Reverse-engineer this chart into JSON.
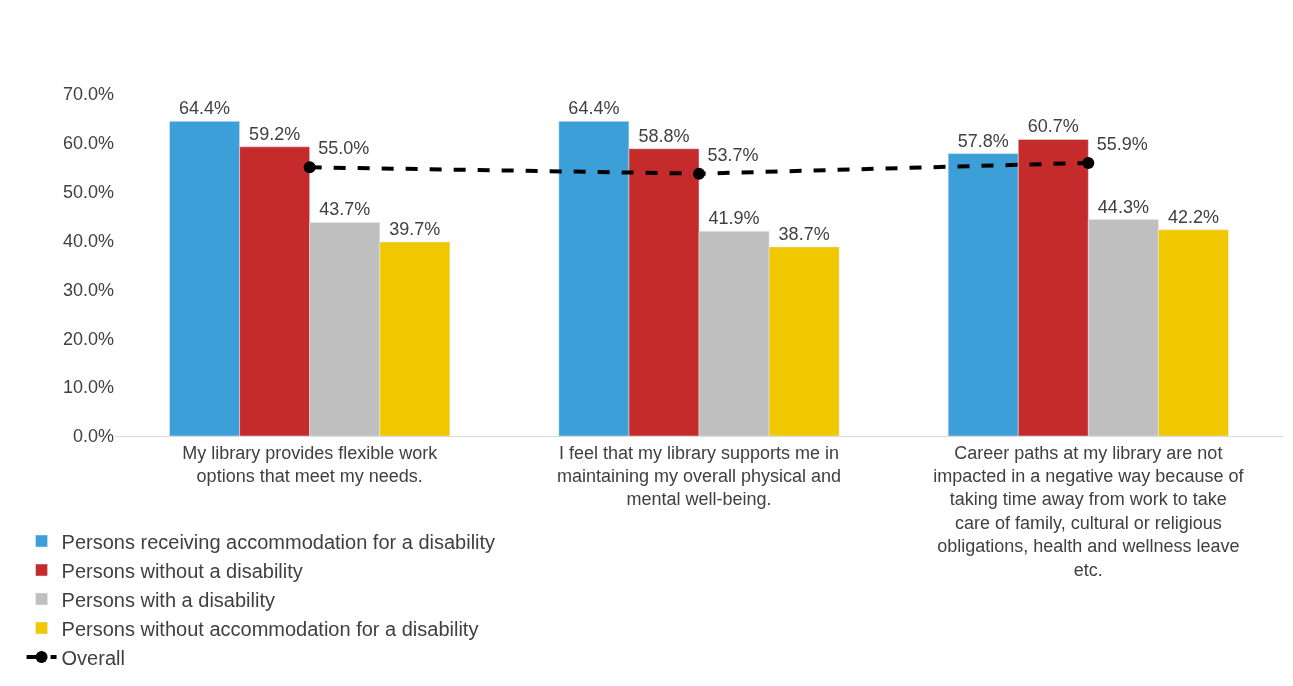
{
  "chart_data": {
    "type": "bar",
    "categories": [
      "My library provides flexible work options that meet my needs.",
      "I feel that my library supports me in maintaining my overall physical and mental well-being.",
      "Career paths at my library are not impacted in a negative way because of taking time away from work to take care of family, cultural or religious obligations, health and wellness leave etc."
    ],
    "series": [
      {
        "name": "Persons receiving accommodation for a disability",
        "color": "#3c9fd8",
        "values": [
          64.4,
          64.4,
          57.8
        ],
        "value_labels": [
          "64.4%",
          "64.4%",
          "57.8%"
        ]
      },
      {
        "name": "Persons without a disability",
        "color": "#c52b2b",
        "values": [
          59.2,
          58.8,
          60.7
        ],
        "value_labels": [
          "59.2%",
          "58.8%",
          "60.7%"
        ]
      },
      {
        "name": "Persons with a disability",
        "color": "#bfbfbf",
        "values": [
          43.7,
          41.9,
          44.3
        ],
        "value_labels": [
          "43.7%",
          "41.9%",
          "44.3%"
        ]
      },
      {
        "name": "Persons without accommodation for a disability",
        "color": "#f0c800",
        "values": [
          39.7,
          38.7,
          42.2
        ],
        "value_labels": [
          "39.7%",
          "38.7%",
          "42.2%"
        ]
      },
      {
        "name": "Overall",
        "type": "line",
        "color": "#000000",
        "marker": "circle",
        "line_style": "dashed",
        "values": [
          55.0,
          53.7,
          55.9
        ],
        "value_labels": [
          "55.0%",
          "53.7%",
          "55.9%"
        ]
      }
    ],
    "ylim": [
      0,
      70
    ],
    "yticks": [
      {
        "value": 0,
        "label": "0.0%"
      },
      {
        "value": 10,
        "label": "10.0%"
      },
      {
        "value": 20,
        "label": "20.0%"
      },
      {
        "value": 30,
        "label": "30.0%"
      },
      {
        "value": 40,
        "label": "40.0%"
      },
      {
        "value": 50,
        "label": "50.0%"
      },
      {
        "value": 60,
        "label": "60.0%"
      },
      {
        "value": 70,
        "label": "70.0%"
      }
    ],
    "legend": "bottom left"
  }
}
